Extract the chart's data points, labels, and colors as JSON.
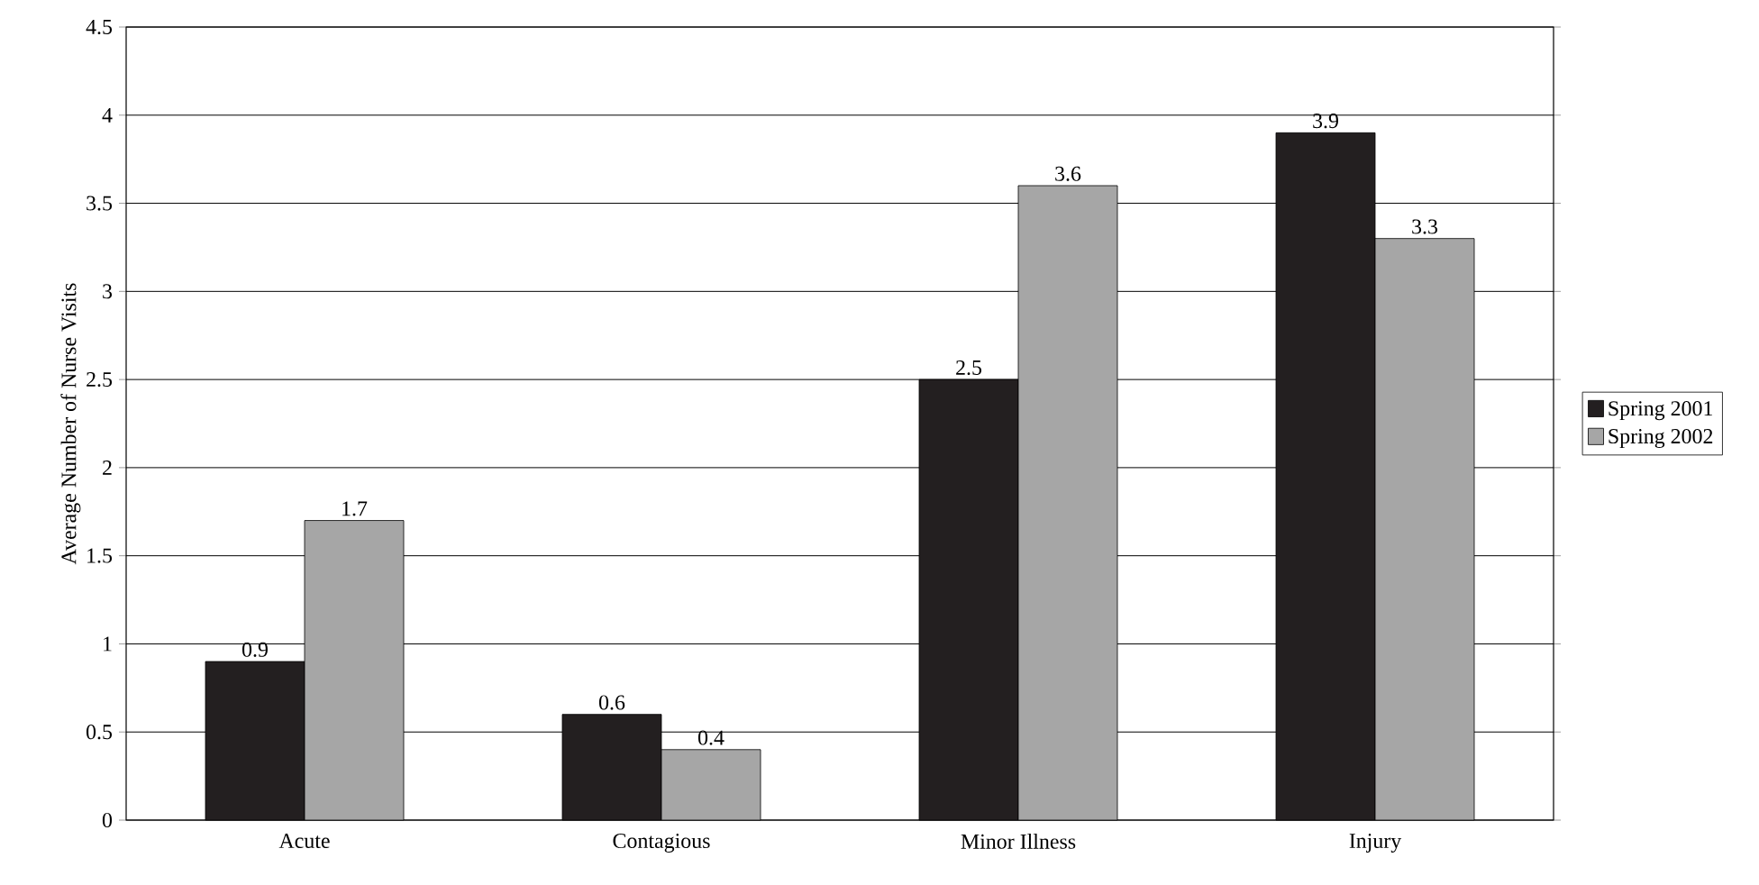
{
  "chart_data": {
    "type": "bar",
    "ylabel": "Average Number of Nurse Visits",
    "categories": [
      "Acute",
      "Contagious",
      "Minor Illness",
      "Injury"
    ],
    "series": [
      {
        "name": "Spring 2001",
        "color": "#231f20",
        "values": [
          0.9,
          0.6,
          2.5,
          3.9
        ]
      },
      {
        "name": "Spring 2002",
        "color": "#a6a6a6",
        "values": [
          1.7,
          0.4,
          3.6,
          3.3
        ]
      }
    ],
    "ylim": [
      0,
      4.5
    ],
    "yticks": [
      0,
      0.5,
      1,
      1.5,
      2,
      2.5,
      3,
      3.5,
      4,
      4.5
    ],
    "grid": "y",
    "legend": "right",
    "data_labels": true
  }
}
